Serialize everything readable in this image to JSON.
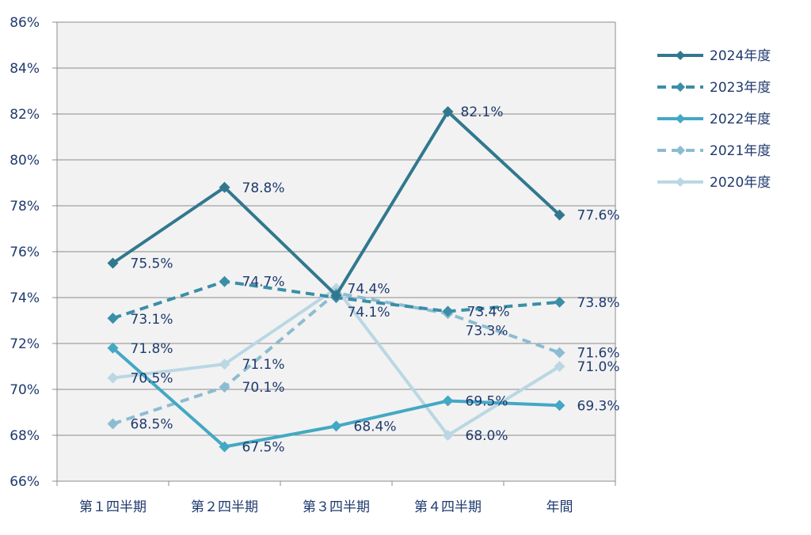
{
  "chart_data": {
    "type": "line",
    "categories": [
      "第１四半期",
      "第２四半期",
      "第３四半期",
      "第４四半期",
      "年間"
    ],
    "ylim": [
      66,
      86
    ],
    "yticks": [
      66,
      68,
      70,
      72,
      74,
      76,
      78,
      80,
      82,
      84,
      86
    ],
    "ytick_labels": [
      "66%",
      "68%",
      "70%",
      "72%",
      "74%",
      "76%",
      "78%",
      "80%",
      "82%",
      "84%",
      "86%"
    ],
    "grid": true,
    "legend_position": "right",
    "series": [
      {
        "name": "2024年度",
        "values": [
          75.5,
          78.8,
          74.1,
          82.1,
          77.6
        ],
        "labels": [
          "75.5%",
          "78.8%",
          "74.1%",
          "82.1%",
          "77.6%"
        ],
        "color": "#31788f",
        "dashed": false
      },
      {
        "name": "2023年度",
        "values": [
          73.1,
          74.7,
          74.0,
          73.4,
          73.8
        ],
        "labels": [
          "73.1%",
          "74.7%",
          "",
          "73.4%",
          "73.8%"
        ],
        "color": "#3a8ea8",
        "dashed": true
      },
      {
        "name": "2022年度",
        "values": [
          71.8,
          67.5,
          68.4,
          69.5,
          69.3
        ],
        "labels": [
          "71.8%",
          "67.5%",
          "68.4%",
          "69.5%",
          "69.3%"
        ],
        "color": "#43a8c4",
        "dashed": false
      },
      {
        "name": "2021年度",
        "values": [
          68.5,
          70.1,
          74.2,
          73.3,
          71.6
        ],
        "labels": [
          "68.5%",
          "70.1%",
          "",
          "73.3%",
          "71.6%"
        ],
        "color": "#8cbcd2",
        "dashed": true
      },
      {
        "name": "2020年度",
        "values": [
          70.5,
          71.1,
          74.4,
          68.0,
          71.0
        ],
        "labels": [
          "70.5%",
          "71.1%",
          "74.4%",
          "68.0%",
          "71.0%"
        ],
        "color": "#bad7e3",
        "dashed": false
      }
    ]
  }
}
